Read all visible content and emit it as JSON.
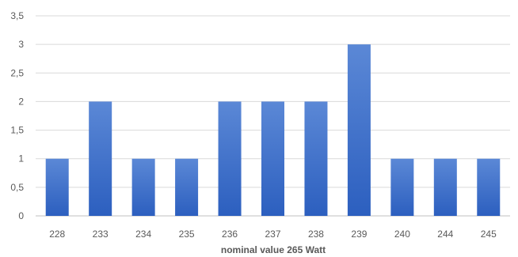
{
  "chart_data": {
    "type": "bar",
    "categories": [
      "228",
      "233",
      "234",
      "235",
      "236",
      "237",
      "238",
      "239",
      "240",
      "244",
      "245"
    ],
    "values": [
      1,
      2,
      1,
      1,
      2,
      2,
      2,
      3,
      1,
      1,
      1
    ],
    "y_ticks": [
      "0",
      "0,5",
      "1",
      "1,5",
      "2",
      "2,5",
      "3",
      "3,5"
    ],
    "ylim": [
      0,
      3.5
    ],
    "xlabel": "nominal value 265 Watt",
    "ylabel": "",
    "title": "",
    "grid": true,
    "legend": "none",
    "colors": {
      "bar_top": "#5b88d6",
      "bar_bottom": "#2c5fbf",
      "grid": "#d9d9d9",
      "text": "#595959"
    }
  }
}
